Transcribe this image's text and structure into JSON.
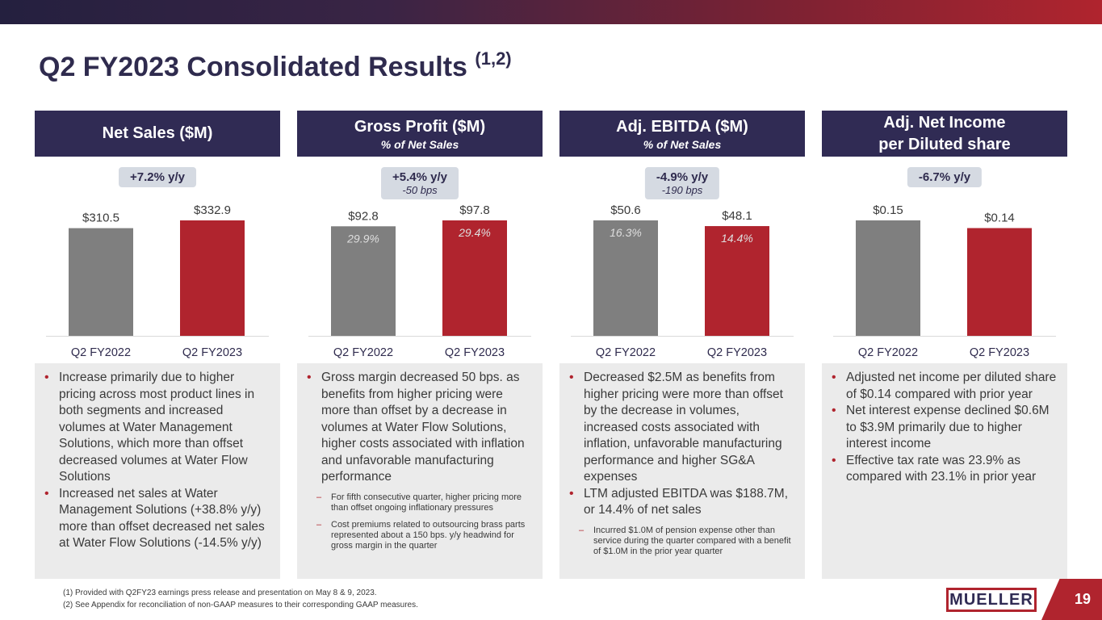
{
  "title": "Q2 FY2023 Consolidated Results",
  "title_sup": "(1,2)",
  "colors": {
    "header_bg": "#302b54",
    "bar_prior": "#7f7f7f",
    "bar_current": "#b0242e",
    "bullet": "#b0242e"
  },
  "columns": [
    {
      "header": "Net Sales ($M)",
      "subheader": "",
      "badge": {
        "main": "+7.2% y/y",
        "sub": ""
      },
      "notes": [
        {
          "type": "main",
          "text": "Increase primarily due to higher pricing across most product lines in both segments and increased volumes at Water Management Solutions, which more than offset decreased volumes at Water Flow Solutions"
        },
        {
          "type": "main",
          "text": "Increased net sales at Water Management Solutions (+38.8% y/y) more than offset decreased net sales at Water Flow Solutions (-14.5% y/y)"
        }
      ]
    },
    {
      "header": "Gross Profit ($M)",
      "subheader": "% of Net Sales",
      "badge": {
        "main": "+5.4% y/y",
        "sub": "-50 bps"
      },
      "notes": [
        {
          "type": "main",
          "text": "Gross margin decreased 50 bps. as benefits from higher pricing were more than offset by a decrease in volumes at Water Flow Solutions, higher costs associated with inflation and unfavorable manufacturing performance"
        },
        {
          "type": "sub",
          "text": "For fifth consecutive quarter, higher pricing more than offset ongoing inflationary pressures"
        },
        {
          "type": "sub",
          "text": "Cost premiums related to outsourcing brass parts represented about a 150 bps. y/y headwind for gross margin in the quarter"
        }
      ]
    },
    {
      "header": "Adj. EBITDA ($M)",
      "subheader": "% of Net Sales",
      "badge": {
        "main": "-4.9% y/y",
        "sub": "-190 bps"
      },
      "notes": [
        {
          "type": "main",
          "text": "Decreased $2.5M as benefits from higher pricing were more than offset by the decrease in volumes, increased costs associated with inflation, unfavorable manufacturing performance and higher SG&A expenses"
        },
        {
          "type": "main",
          "text": "LTM adjusted EBITDA was $188.7M, or 14.4% of net sales"
        },
        {
          "type": "sub",
          "text": "Incurred $1.0M of pension expense other than service during the quarter compared with a benefit of $1.0M in the prior year quarter"
        }
      ]
    },
    {
      "header": "Adj. Net Income",
      "header2": "per Diluted share",
      "subheader": "",
      "badge": {
        "main": "-6.7% y/y",
        "sub": ""
      },
      "notes": [
        {
          "type": "main",
          "text": "Adjusted net income per diluted share of $0.14 compared with prior year"
        },
        {
          "type": "main",
          "text": "Net interest expense declined $0.6M to $3.9M primarily due to higher interest income"
        },
        {
          "type": "main",
          "text": "Effective tax rate was 23.9% as compared with 23.1% in prior year"
        }
      ]
    }
  ],
  "chart_data": [
    {
      "type": "bar",
      "title": "Net Sales ($M)",
      "categories": [
        "Q2 FY2022",
        "Q2 FY2023"
      ],
      "values": [
        310.5,
        332.9
      ],
      "value_labels": [
        "$310.5",
        "$332.9"
      ],
      "pct_labels": [
        "",
        ""
      ],
      "ylim": [
        0,
        332.9
      ]
    },
    {
      "type": "bar",
      "title": "Gross Profit ($M)",
      "categories": [
        "Q2 FY2022",
        "Q2 FY2023"
      ],
      "values": [
        92.8,
        97.8
      ],
      "value_labels": [
        "$92.8",
        "$97.8"
      ],
      "pct_labels": [
        "29.9%",
        "29.4%"
      ],
      "ylim": [
        0,
        97.8
      ]
    },
    {
      "type": "bar",
      "title": "Adj. EBITDA ($M)",
      "categories": [
        "Q2 FY2022",
        "Q2 FY2023"
      ],
      "values": [
        50.6,
        48.1
      ],
      "value_labels": [
        "$50.6",
        "$48.1"
      ],
      "pct_labels": [
        "16.3%",
        "14.4%"
      ],
      "ylim": [
        0,
        50.6
      ]
    },
    {
      "type": "bar",
      "title": "Adj. Net Income per Diluted share",
      "categories": [
        "Q2 FY2022",
        "Q2 FY2023"
      ],
      "values": [
        0.15,
        0.14
      ],
      "value_labels": [
        "$0.15",
        "$0.14"
      ],
      "pct_labels": [
        "",
        ""
      ],
      "ylim": [
        0,
        0.15
      ]
    }
  ],
  "footnotes": [
    "(1)  Provided with Q2FY23 earnings press release and presentation on May 8 & 9, 2023.",
    "(2)  See Appendix for reconciliation of non-GAAP measures to their corresponding GAAP measures."
  ],
  "logo_text": "MUELLER",
  "page_number": "19"
}
